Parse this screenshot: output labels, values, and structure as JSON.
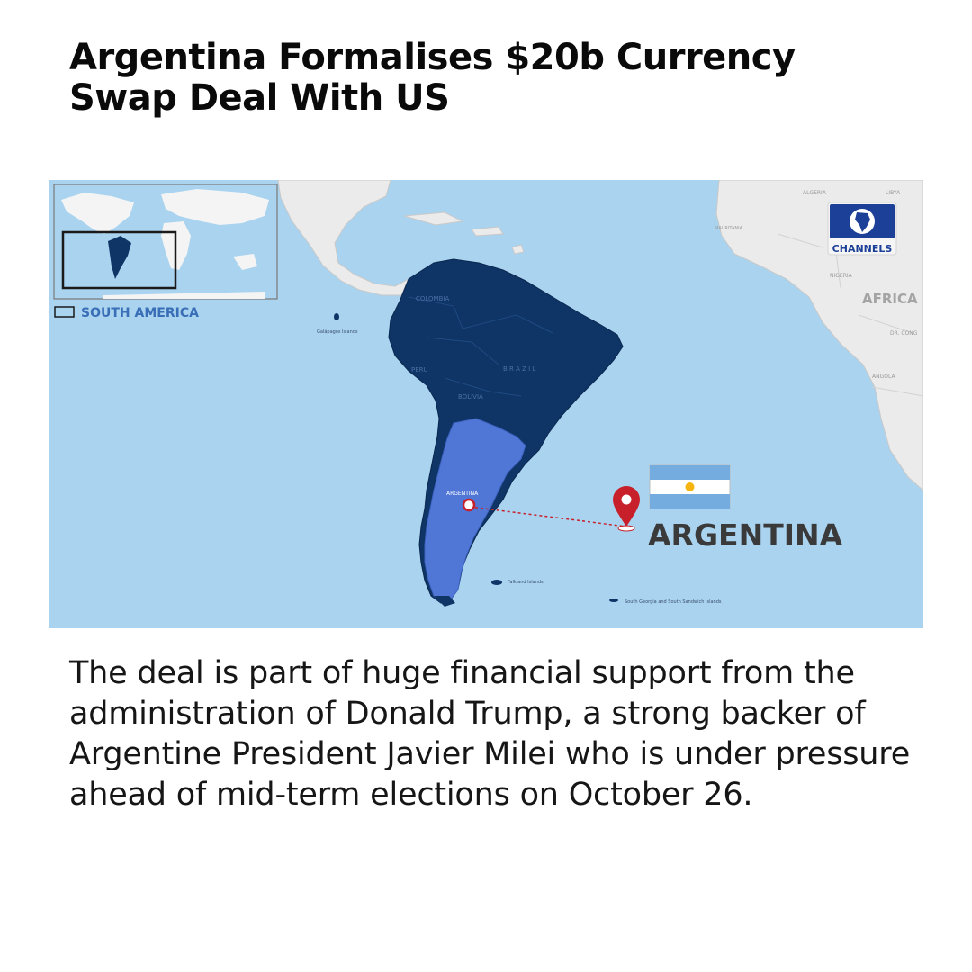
{
  "article": {
    "headline": "Argentina Formalises $20b Currency Swap Deal With US",
    "body": "The deal is part of huge financial support from the administration of Donald Trump, a strong backer of Argentine President Javier Milei who is under pressure ahead of mid-term elections on October 26."
  },
  "map": {
    "inset_legend": "SOUTH AMERICA",
    "pin_label": "ARGENTINA",
    "small_label": "ARGENTINA",
    "country_labels": [
      "COLOMBIA",
      "PERU",
      "BOLIVIA",
      "B R A Z I L"
    ],
    "africa_labels": [
      "ALGERIA",
      "LIBYA",
      "MAURITANIA",
      "NIGERIA",
      "AFRICA",
      "DR. CONG",
      "ANGOLA"
    ],
    "island_labels": {
      "galapagos": "Galápagos Islands",
      "falkland": "Falkland Islands",
      "south_georgia": "South Georgia and South Sandwich Islands"
    },
    "logo_text": "CHANNELS",
    "colors": {
      "ocean": "#a9d3ef",
      "south_america": "#0f3466",
      "argentina": "#5077d6",
      "pin": "#c8202b",
      "flag_blue": "#74acdf"
    }
  }
}
